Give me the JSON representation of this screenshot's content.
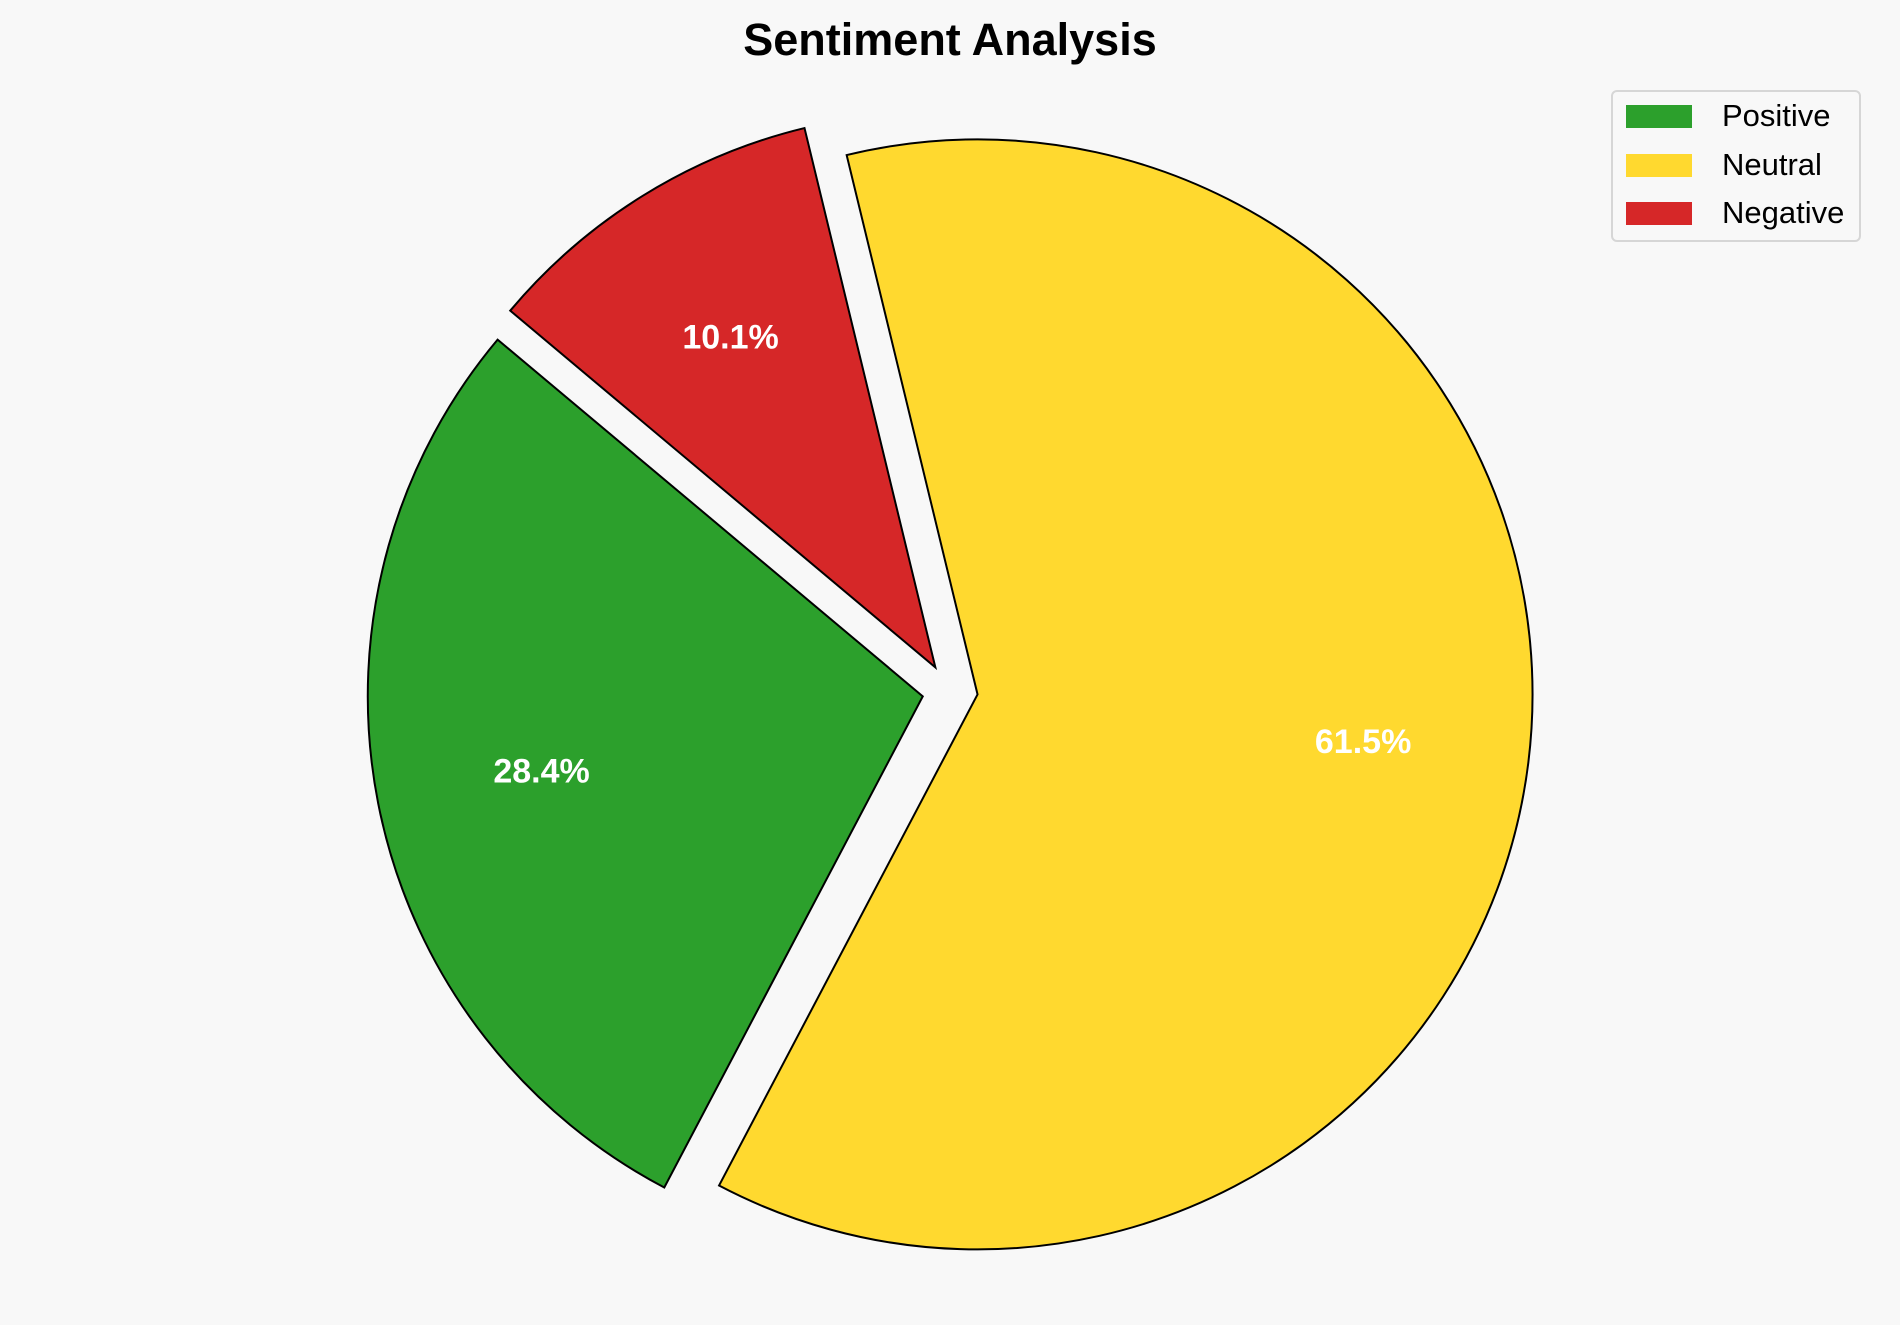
{
  "chart_data": {
    "type": "pie",
    "title": "Sentiment Analysis",
    "categories": [
      "Positive",
      "Neutral",
      "Negative"
    ],
    "values": [
      28.4,
      61.5,
      10.1
    ],
    "labels": [
      "28.4%",
      "61.5%",
      "10.1%"
    ],
    "colors": [
      "#2ca02c",
      "#ffd92f",
      "#d62728"
    ],
    "edge_color": "#000000",
    "explode": [
      0.05,
      0.05,
      0.05
    ],
    "start_angle": 140,
    "direction": "counterclockwise",
    "legend": {
      "entries": [
        "Positive",
        "Neutral",
        "Negative"
      ],
      "placement": "top-right"
    },
    "background": "#f8f8f8"
  }
}
